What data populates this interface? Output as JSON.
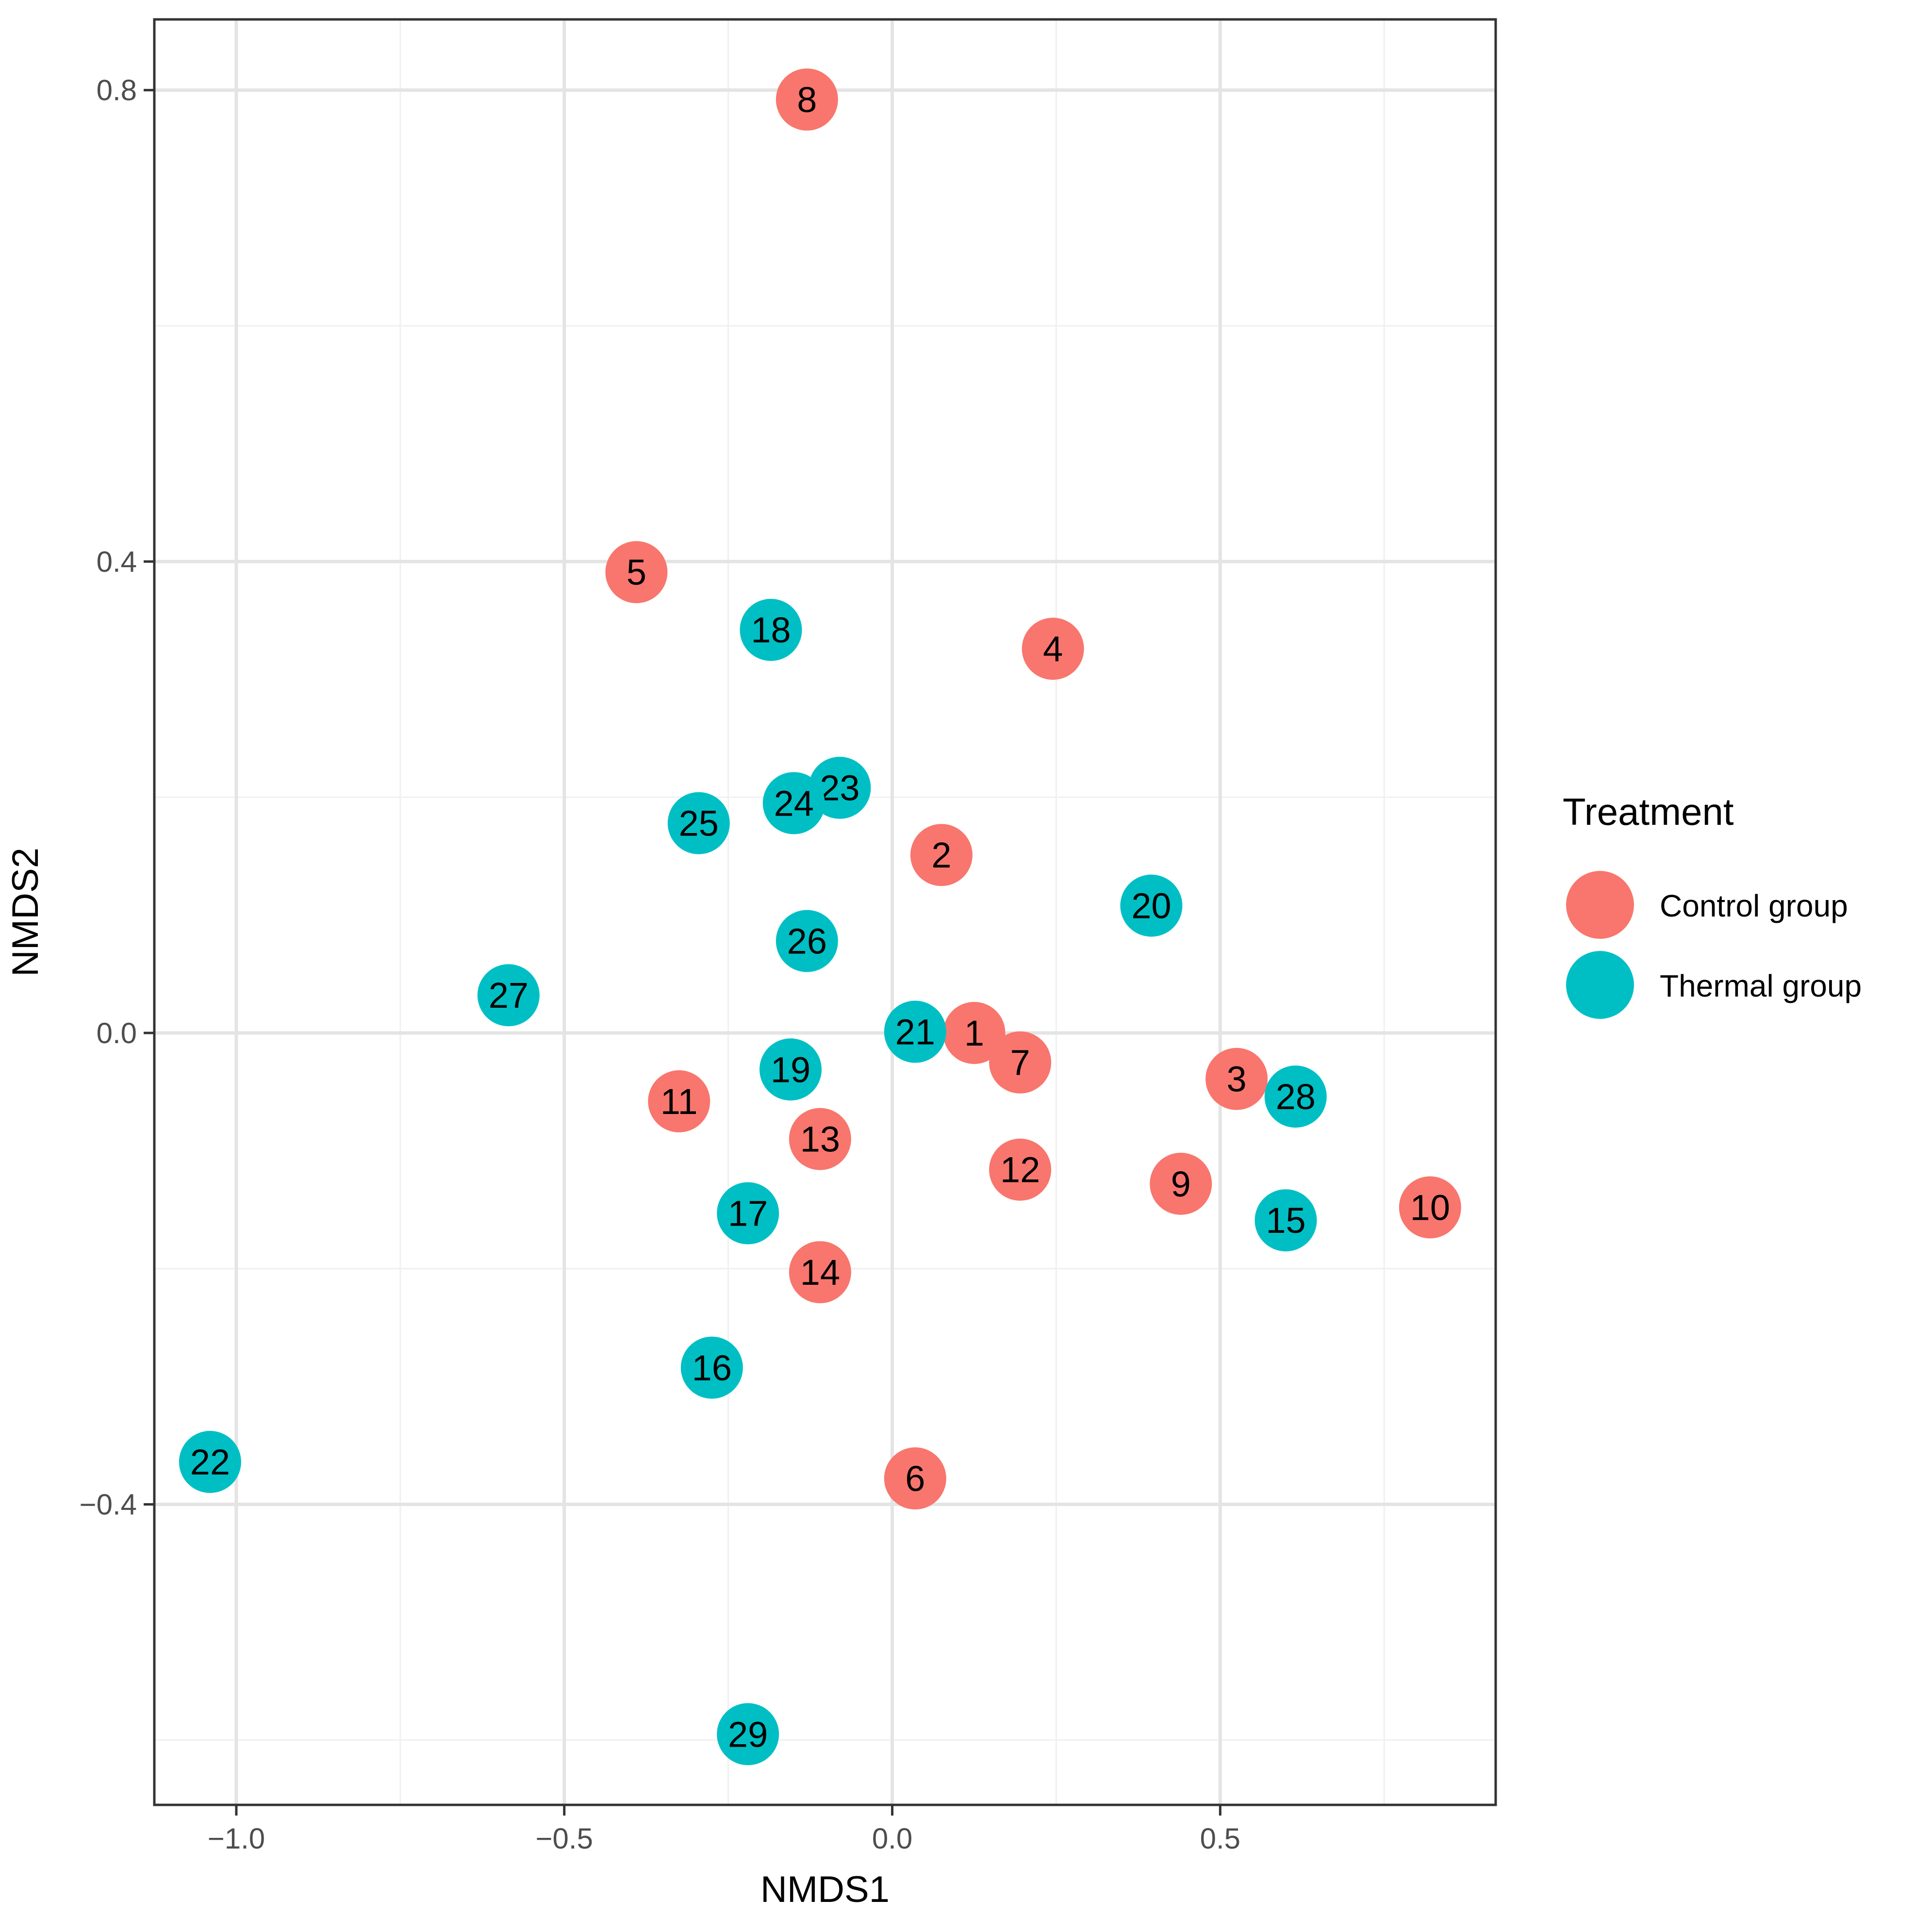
{
  "chart_data": {
    "type": "scatter",
    "title": "",
    "xlabel": "NMDS1",
    "ylabel": "NMDS2",
    "xlim": [
      -1.125,
      0.92
    ],
    "ylim": [
      -0.655,
      0.86
    ],
    "x_ticks": [
      {
        "value": -1.0,
        "label": "−1.0"
      },
      {
        "value": -0.5,
        "label": "−0.5"
      },
      {
        "value": 0.0,
        "label": "0.0"
      },
      {
        "value": 0.5,
        "label": "0.5"
      }
    ],
    "y_ticks": [
      {
        "value": -0.4,
        "label": "−0.4"
      },
      {
        "value": 0.0,
        "label": "0.0"
      },
      {
        "value": 0.4,
        "label": "0.4"
      },
      {
        "value": 0.8,
        "label": "0.8"
      }
    ],
    "x_minor_grid": [
      -0.75,
      -0.25,
      0.25,
      0.75
    ],
    "y_minor_grid": [
      -0.6,
      -0.2,
      0.2,
      0.6
    ],
    "grid": true,
    "legend": {
      "title": "Treatment",
      "position": "right",
      "entries": [
        {
          "label": "Control group",
          "color": "#F8766D"
        },
        {
          "label": "Thermal group",
          "color": "#00BFC4"
        }
      ]
    },
    "series": [
      {
        "name": "Control group",
        "color": "#F8766D",
        "points": [
          {
            "label": "1",
            "x": 0.125,
            "y": 0.0
          },
          {
            "label": "2",
            "x": 0.075,
            "y": 0.151
          },
          {
            "label": "3",
            "x": 0.525,
            "y": -0.039
          },
          {
            "label": "4",
            "x": 0.245,
            "y": 0.326
          },
          {
            "label": "5",
            "x": -0.39,
            "y": 0.391
          },
          {
            "label": "6",
            "x": 0.035,
            "y": -0.378
          },
          {
            "label": "7",
            "x": 0.195,
            "y": -0.025
          },
          {
            "label": "8",
            "x": -0.13,
            "y": 0.792
          },
          {
            "label": "9",
            "x": 0.44,
            "y": -0.128
          },
          {
            "label": "10",
            "x": 0.82,
            "y": -0.148
          },
          {
            "label": "11",
            "x": -0.325,
            "y": -0.058
          },
          {
            "label": "12",
            "x": 0.195,
            "y": -0.116
          },
          {
            "label": "13",
            "x": -0.11,
            "y": -0.09
          },
          {
            "label": "14",
            "x": -0.11,
            "y": -0.203
          }
        ]
      },
      {
        "name": "Thermal group",
        "color": "#00BFC4",
        "points": [
          {
            "label": "15",
            "x": 0.6,
            "y": -0.159
          },
          {
            "label": "16",
            "x": -0.275,
            "y": -0.284
          },
          {
            "label": "17",
            "x": -0.22,
            "y": -0.153
          },
          {
            "label": "18",
            "x": -0.185,
            "y": 0.342
          },
          {
            "label": "19",
            "x": -0.155,
            "y": -0.031
          },
          {
            "label": "20",
            "x": 0.395,
            "y": 0.108
          },
          {
            "label": "21",
            "x": 0.035,
            "y": 0.001
          },
          {
            "label": "22",
            "x": -1.04,
            "y": -0.364
          },
          {
            "label": "23",
            "x": -0.08,
            "y": 0.208
          },
          {
            "label": "24",
            "x": -0.15,
            "y": 0.195
          },
          {
            "label": "25",
            "x": -0.295,
            "y": 0.178
          },
          {
            "label": "26",
            "x": -0.13,
            "y": 0.078
          },
          {
            "label": "27",
            "x": -0.585,
            "y": 0.032
          },
          {
            "label": "28",
            "x": 0.615,
            "y": -0.054
          },
          {
            "label": "29",
            "x": -0.22,
            "y": -0.595
          }
        ]
      }
    ]
  }
}
